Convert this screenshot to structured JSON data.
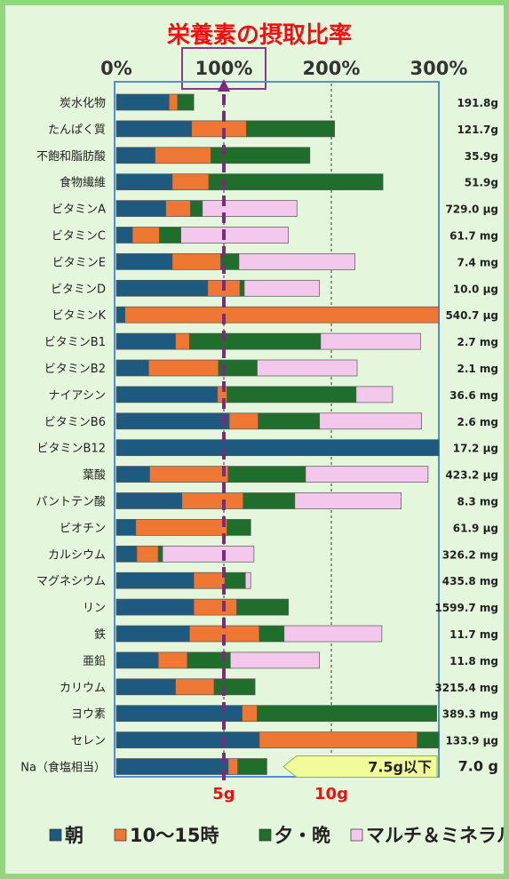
{
  "chart_data": {
    "type": "bar",
    "stacked": true,
    "orientation": "horizontal",
    "title": "栄養素の摂取比率",
    "xlim": [
      0,
      300
    ],
    "x_ticks": [
      "0%",
      "100%",
      "200%",
      "300%"
    ],
    "grid": true,
    "legend_position": "bottom",
    "categories": [
      "炭水化物",
      "たんぱく質",
      "不飽和脂肪酸",
      "食物繊維",
      "ビタミンA",
      "ビタミンC",
      "ビタミンE",
      "ビタミンD",
      "ビタミンK",
      "ビタミンB1",
      "ビタミンB2",
      "ナイアシン",
      "ビタミンB6",
      "ビタミンB12",
      "葉酸",
      "パントテン酸",
      "ビオチン",
      "カルシウム",
      "マグネシウム",
      "リン",
      "鉄",
      "亜鉛",
      "カリウム",
      "ヨウ素",
      "セレン",
      "Na（食塩相当）"
    ],
    "intake": [
      "191.8g",
      "121.7g",
      "35.9g",
      "51.9g",
      "729.0 µg",
      "61.7 mg",
      "7.4 mg",
      "10.0 µg",
      "540.7 µg",
      "2.7 mg",
      "2.1 mg",
      "36.6 mg",
      "2.6 mg",
      "17.2 µg",
      "423.2 µg",
      "8.3 mg",
      "61.9 µg",
      "326.2 mg",
      "435.8 mg",
      "1599.7 mg",
      "11.7 mg",
      "11.8 mg",
      "3215.4 mg",
      "389.3 mg",
      "133.9 µg",
      "7.0 g"
    ],
    "series": [
      {
        "name": "朝",
        "color": "#1e5a80",
        "values": [
          49,
          70,
          36,
          52,
          46,
          15,
          52,
          85,
          8,
          55,
          30,
          94,
          105,
          300,
          31,
          61,
          18,
          19,
          72,
          72,
          68,
          39,
          55,
          117,
          133,
          104
        ]
      },
      {
        "name": "10～15時",
        "color": "#ee7733",
        "values": [
          8,
          51,
          52,
          34,
          23,
          25,
          45,
          30,
          292,
          13,
          65,
          9,
          27,
          0,
          73,
          57,
          85,
          20,
          29,
          40,
          65,
          27,
          36,
          14,
          147,
          9
        ]
      },
      {
        "name": "夕・晩",
        "color": "#1f6e2c",
        "values": [
          15,
          82,
          92,
          162,
          11,
          20,
          17,
          4,
          0,
          122,
          36,
          120,
          57,
          0,
          72,
          48,
          22,
          4,
          19,
          48,
          23,
          40,
          38,
          167,
          20,
          27
        ]
      },
      {
        "name": "マルチ＆ミネラル",
        "color": "#f3c8ec",
        "values": [
          0,
          0,
          0,
          0,
          88,
          100,
          108,
          70,
          0,
          93,
          93,
          34,
          95,
          0,
          114,
          99,
          0,
          85,
          5,
          0,
          91,
          83,
          0,
          0,
          0,
          0
        ]
      }
    ],
    "reference_label": "5g",
    "secondary_label": "10g",
    "target_note": "7.5g以下"
  }
}
